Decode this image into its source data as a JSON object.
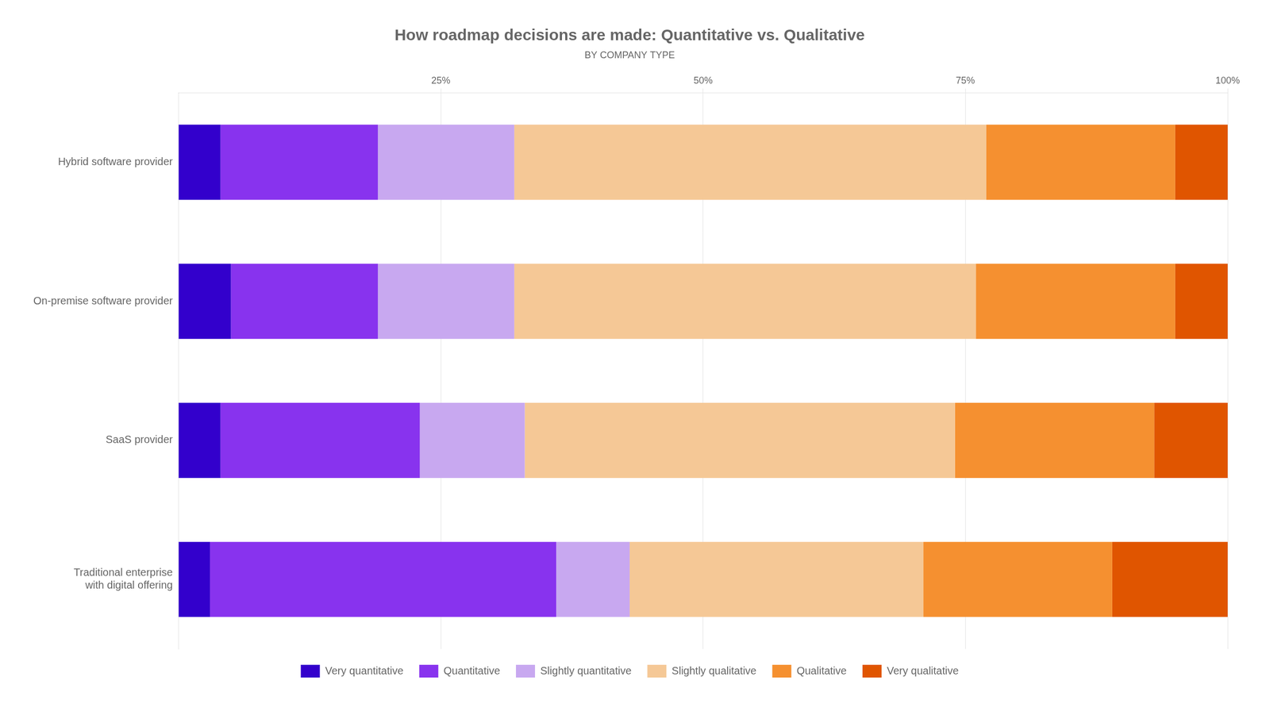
{
  "chart_data": {
    "type": "bar",
    "orientation": "horizontal",
    "stacked": true,
    "title": "How roadmap decisions are made: Quantitative vs. Qualitative",
    "subtitle": "BY COMPANY TYPE",
    "categories": [
      "Hybrid software provider",
      "On-premise software provider",
      "SaaS provider",
      "Traditional enterprise\nwith digital offering"
    ],
    "series": [
      {
        "name": "Very quantitative",
        "color": "#3300cc",
        "values": [
          4,
          5,
          4,
          3
        ]
      },
      {
        "name": "Quantitative",
        "color": "#8833ee",
        "values": [
          15,
          14,
          19,
          33
        ]
      },
      {
        "name": "Slightly quantitative",
        "color": "#c8a8f0",
        "values": [
          13,
          13,
          10,
          7
        ]
      },
      {
        "name": "Slightly qualitative",
        "color": "#f5c896",
        "values": [
          45,
          44,
          41,
          28
        ]
      },
      {
        "name": "Qualitative",
        "color": "#f59030",
        "values": [
          18,
          19,
          19,
          18
        ]
      },
      {
        "name": "Very qualitative",
        "color": "#e05500",
        "values": [
          5,
          5,
          7,
          11
        ]
      }
    ],
    "xlim": [
      0,
      100
    ],
    "xticks": [
      {
        "value": 25,
        "label": "25%"
      },
      {
        "value": 50,
        "label": "50%"
      },
      {
        "value": 75,
        "label": "75%"
      },
      {
        "value": 100,
        "label": "100%"
      }
    ],
    "grid": true,
    "legend": "bottom"
  }
}
